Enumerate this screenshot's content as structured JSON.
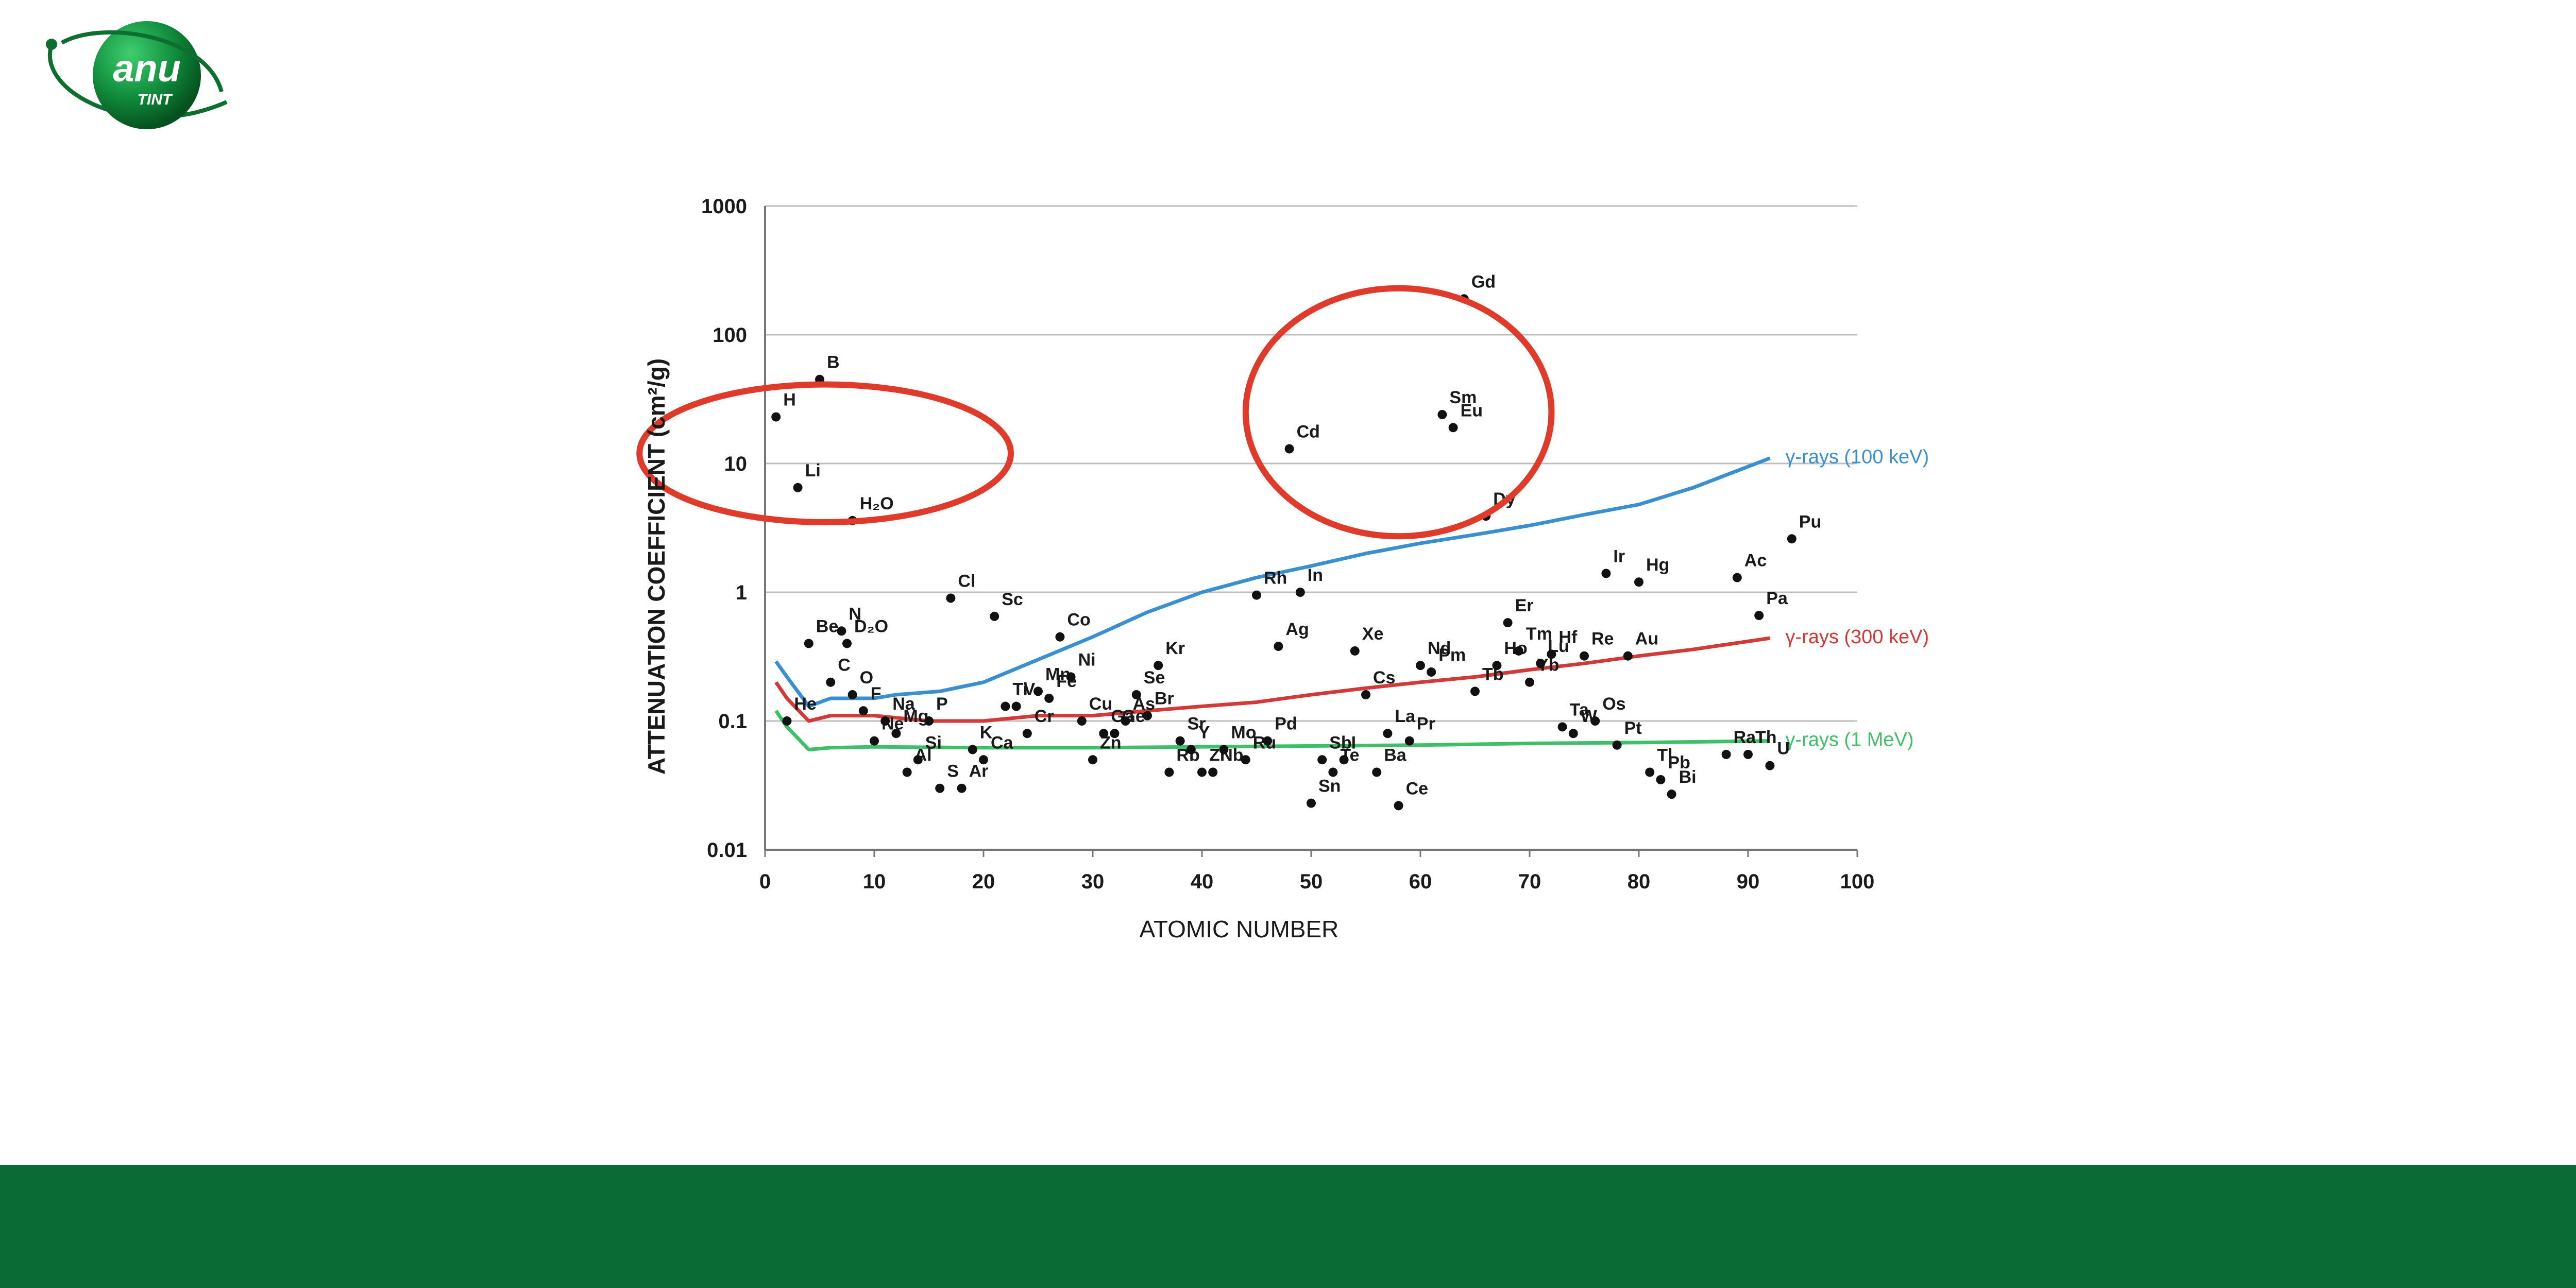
{
  "logo": {
    "text_main": "anu",
    "text_sub": "TINT"
  },
  "colors": {
    "footer": "#0a6b35",
    "gamma_100keV": "#3a8fd0",
    "gamma_300keV": "#d23a3a",
    "gamma_1MeV": "#3fbf6a",
    "circle": "#e03a2a",
    "points": "#111111"
  },
  "chart_data": {
    "type": "scatter",
    "xlabel": "ATOMIC NUMBER",
    "ylabel": "ATTENUATION COEFFICIENT (cm²/g)",
    "xlim": [
      0,
      100
    ],
    "ylim": [
      0.01,
      1000
    ],
    "yscale": "log",
    "grid": "horizontal",
    "x_ticks": [
      "0",
      "10",
      "20",
      "30",
      "40",
      "50",
      "60",
      "70",
      "80",
      "90",
      "100"
    ],
    "y_ticks": [
      "0.01",
      "0.1",
      "1",
      "10",
      "100",
      "1000"
    ],
    "elements": [
      {
        "label": "H",
        "x": 1,
        "y": 23
      },
      {
        "label": "He",
        "x": 2,
        "y": 0.1
      },
      {
        "label": "Li",
        "x": 3,
        "y": 6.5
      },
      {
        "label": "Be",
        "x": 4,
        "y": 0.4
      },
      {
        "label": "B",
        "x": 5,
        "y": 45
      },
      {
        "label": "C",
        "x": 6,
        "y": 0.2
      },
      {
        "label": "H₂O",
        "x": 8,
        "y": 3.6
      },
      {
        "label": "N",
        "x": 7,
        "y": 0.5
      },
      {
        "label": "D₂O",
        "x": 7.5,
        "y": 0.4
      },
      {
        "label": "O",
        "x": 8,
        "y": 0.16
      },
      {
        "label": "F",
        "x": 9,
        "y": 0.12
      },
      {
        "label": "Ne",
        "x": 10,
        "y": 0.07
      },
      {
        "label": "Na",
        "x": 11,
        "y": 0.1
      },
      {
        "label": "Mg",
        "x": 12,
        "y": 0.08
      },
      {
        "label": "Al",
        "x": 13,
        "y": 0.04
      },
      {
        "label": "Si",
        "x": 14,
        "y": 0.05
      },
      {
        "label": "P",
        "x": 15,
        "y": 0.1
      },
      {
        "label": "S",
        "x": 16,
        "y": 0.03
      },
      {
        "label": "Cl",
        "x": 17,
        "y": 0.9
      },
      {
        "label": "Ar",
        "x": 18,
        "y": 0.03
      },
      {
        "label": "K",
        "x": 19,
        "y": 0.06
      },
      {
        "label": "Ca",
        "x": 20,
        "y": 0.05
      },
      {
        "label": "Sc",
        "x": 21,
        "y": 0.65
      },
      {
        "label": "Ti",
        "x": 22,
        "y": 0.13
      },
      {
        "label": "V",
        "x": 23,
        "y": 0.13
      },
      {
        "label": "Cr",
        "x": 24,
        "y": 0.08
      },
      {
        "label": "Mn",
        "x": 25,
        "y": 0.17
      },
      {
        "label": "Fe",
        "x": 26,
        "y": 0.15
      },
      {
        "label": "Co",
        "x": 27,
        "y": 0.45
      },
      {
        "label": "Ni",
        "x": 28,
        "y": 0.22
      },
      {
        "label": "Cu",
        "x": 29,
        "y": 0.1
      },
      {
        "label": "Zn",
        "x": 30,
        "y": 0.05
      },
      {
        "label": "Ga",
        "x": 31,
        "y": 0.08
      },
      {
        "label": "Ge",
        "x": 32,
        "y": 0.08
      },
      {
        "label": "As",
        "x": 33,
        "y": 0.1
      },
      {
        "label": "Se",
        "x": 34,
        "y": 0.16
      },
      {
        "label": "Br",
        "x": 35,
        "y": 0.11
      },
      {
        "label": "Kr",
        "x": 36,
        "y": 0.27
      },
      {
        "label": "Rb",
        "x": 37,
        "y": 0.04
      },
      {
        "label": "Sr",
        "x": 38,
        "y": 0.07
      },
      {
        "label": "Y",
        "x": 39,
        "y": 0.06
      },
      {
        "label": "Zr",
        "x": 40,
        "y": 0.04
      },
      {
        "label": "Nb",
        "x": 41,
        "y": 0.04
      },
      {
        "label": "Mo",
        "x": 42,
        "y": 0.06
      },
      {
        "label": "Ru",
        "x": 44,
        "y": 0.05
      },
      {
        "label": "Rh",
        "x": 45,
        "y": 0.95
      },
      {
        "label": "Pd",
        "x": 46,
        "y": 0.07
      },
      {
        "label": "Ag",
        "x": 47,
        "y": 0.38
      },
      {
        "label": "Cd",
        "x": 48,
        "y": 13
      },
      {
        "label": "In",
        "x": 49,
        "y": 1.0
      },
      {
        "label": "Sn",
        "x": 50,
        "y": 0.023
      },
      {
        "label": "Sb",
        "x": 51,
        "y": 0.05
      },
      {
        "label": "Te",
        "x": 52,
        "y": 0.04
      },
      {
        "label": "I",
        "x": 53,
        "y": 0.05
      },
      {
        "label": "Xe",
        "x": 54,
        "y": 0.35
      },
      {
        "label": "Cs",
        "x": 55,
        "y": 0.16
      },
      {
        "label": "Ba",
        "x": 56,
        "y": 0.04
      },
      {
        "label": "La",
        "x": 57,
        "y": 0.08
      },
      {
        "label": "Ce",
        "x": 58,
        "y": 0.022
      },
      {
        "label": "Pr",
        "x": 59,
        "y": 0.07
      },
      {
        "label": "Nd",
        "x": 60,
        "y": 0.27
      },
      {
        "label": "Pm",
        "x": 61,
        "y": 0.24
      },
      {
        "label": "Sm",
        "x": 62,
        "y": 24
      },
      {
        "label": "Eu",
        "x": 63,
        "y": 19
      },
      {
        "label": "Gd",
        "x": 64,
        "y": 190
      },
      {
        "label": "Tb",
        "x": 65,
        "y": 0.17
      },
      {
        "label": "Dy",
        "x": 66,
        "y": 3.9
      },
      {
        "label": "Ho",
        "x": 67,
        "y": 0.27
      },
      {
        "label": "Er",
        "x": 68,
        "y": 0.58
      },
      {
        "label": "Tm",
        "x": 69,
        "y": 0.35
      },
      {
        "label": "Yb",
        "x": 70,
        "y": 0.2
      },
      {
        "label": "Lu",
        "x": 71,
        "y": 0.28
      },
      {
        "label": "Hf",
        "x": 72,
        "y": 0.33
      },
      {
        "label": "Ta",
        "x": 73,
        "y": 0.09
      },
      {
        "label": "W",
        "x": 74,
        "y": 0.08
      },
      {
        "label": "Re",
        "x": 75,
        "y": 0.32
      },
      {
        "label": "Os",
        "x": 76,
        "y": 0.1
      },
      {
        "label": "Ir",
        "x": 77,
        "y": 1.4
      },
      {
        "label": "Pt",
        "x": 78,
        "y": 0.065
      },
      {
        "label": "Au",
        "x": 79,
        "y": 0.32
      },
      {
        "label": "Hg",
        "x": 80,
        "y": 1.2
      },
      {
        "label": "Tl",
        "x": 81,
        "y": 0.04
      },
      {
        "label": "Pb",
        "x": 82,
        "y": 0.035
      },
      {
        "label": "Bi",
        "x": 83,
        "y": 0.027
      },
      {
        "label": "Ra",
        "x": 88,
        "y": 0.055
      },
      {
        "label": "Ac",
        "x": 89,
        "y": 1.3
      },
      {
        "label": "Th",
        "x": 90,
        "y": 0.055
      },
      {
        "label": "Pa",
        "x": 91,
        "y": 0.66
      },
      {
        "label": "U",
        "x": 92,
        "y": 0.045
      },
      {
        "label": "Pu",
        "x": 94,
        "y": 2.6
      }
    ],
    "series": [
      {
        "name": "γ-rays (100 keV)",
        "color": "#3a8fd0",
        "x": [
          1,
          2,
          4,
          6,
          8,
          10,
          12,
          16,
          20,
          25,
          30,
          35,
          40,
          45,
          50,
          55,
          60,
          65,
          70,
          75,
          80,
          85,
          92
        ],
        "y": [
          0.29,
          0.22,
          0.13,
          0.15,
          0.15,
          0.15,
          0.16,
          0.17,
          0.2,
          0.3,
          0.45,
          0.7,
          1.0,
          1.3,
          1.6,
          2.0,
          2.4,
          2.8,
          3.3,
          4.0,
          4.8,
          6.5,
          11
        ]
      },
      {
        "name": "γ-rays (300 keV)",
        "color": "#d23a3a",
        "x": [
          1,
          2,
          4,
          6,
          8,
          10,
          15,
          20,
          25,
          30,
          35,
          40,
          45,
          50,
          55,
          60,
          65,
          70,
          75,
          80,
          85,
          92
        ],
        "y": [
          0.2,
          0.15,
          0.1,
          0.11,
          0.11,
          0.11,
          0.1,
          0.1,
          0.11,
          0.11,
          0.12,
          0.13,
          0.14,
          0.16,
          0.18,
          0.2,
          0.22,
          0.25,
          0.28,
          0.32,
          0.36,
          0.44
        ]
      },
      {
        "name": "γ-rays (1 MeV)",
        "color": "#3fbf6a",
        "x": [
          1,
          2,
          4,
          6,
          10,
          20,
          30,
          40,
          50,
          60,
          70,
          80,
          92
        ],
        "y": [
          0.12,
          0.09,
          0.06,
          0.062,
          0.063,
          0.062,
          0.062,
          0.063,
          0.064,
          0.065,
          0.067,
          0.068,
          0.07
        ]
      }
    ],
    "highlight_circles": [
      {
        "cx": 5.5,
        "cy": 12,
        "rx": 17,
        "ry": 10
      },
      {
        "cx": 58,
        "cy": 25,
        "rx": 14,
        "ry": 18
      }
    ]
  }
}
